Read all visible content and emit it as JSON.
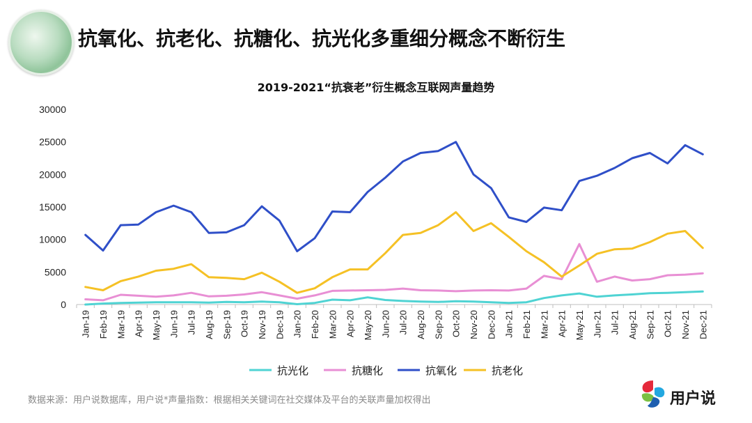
{
  "page": {
    "title": "抗氧化、抗老化、抗糖化、抗光化多重细分概念不断衍生",
    "source": "数据来源：用户说数据库，用户说*声量指数：根据相关关键词在社交媒体及平台的关联声量加权得出"
  },
  "brand": {
    "name": "用户说",
    "colors": [
      "#e5293b",
      "#23a8e0",
      "#7cc142",
      "#1e5fb0"
    ]
  },
  "chart_data": {
    "type": "line",
    "title": "2019-2021“抗衰老”衍生概念互联网声量趋势",
    "xlabel": "",
    "ylabel": "",
    "ylim": [
      0,
      30000
    ],
    "yticks": [
      0,
      5000,
      10000,
      15000,
      20000,
      25000,
      30000
    ],
    "grid": false,
    "legend": "bottom",
    "x": [
      "Jan-19",
      "Feb-19",
      "Mar-19",
      "Apr-19",
      "May-19",
      "Jun-19",
      "Jul-19",
      "Aug-19",
      "Sep-19",
      "Oct-19",
      "Nov-19",
      "Dec-19",
      "Jan-20",
      "Feb-20",
      "Mar-20",
      "Apr-20",
      "May-20",
      "Jun-20",
      "Jul-20",
      "Aug-20",
      "Sep-20",
      "Oct-20",
      "Nov-20",
      "Dec-20",
      "Jan-21",
      "Feb-21",
      "Mar-21",
      "Apr-21",
      "May-21",
      "Jun-21",
      "Jul-21",
      "Aug-21",
      "Sep-21",
      "Oct-21",
      "Nov-21",
      "Dec-21"
    ],
    "series": [
      {
        "name": "抗光化",
        "color": "#4fd3d3",
        "values": [
          0,
          150,
          250,
          300,
          350,
          350,
          350,
          300,
          400,
          350,
          450,
          350,
          50,
          250,
          750,
          650,
          1100,
          700,
          550,
          450,
          400,
          500,
          450,
          350,
          250,
          350,
          1000,
          1400,
          1700,
          1200,
          1400,
          1550,
          1750,
          1800,
          1900,
          2000
        ]
      },
      {
        "name": "抗糖化",
        "color": "#e88fd4",
        "values": [
          800,
          650,
          1500,
          1350,
          1200,
          1400,
          1800,
          1250,
          1350,
          1550,
          1900,
          1400,
          900,
          1400,
          2100,
          2150,
          2200,
          2250,
          2450,
          2200,
          2150,
          2050,
          2150,
          2200,
          2150,
          2450,
          4400,
          3900,
          9300,
          3500,
          4300,
          3700,
          3900,
          4500,
          4600,
          4800
        ]
      },
      {
        "name": "抗氧化",
        "color": "#2f4fc8",
        "values": [
          10700,
          8300,
          12200,
          12300,
          14200,
          15200,
          14200,
          11000,
          11100,
          12200,
          15100,
          12900,
          8200,
          10200,
          14300,
          14200,
          17300,
          19500,
          22000,
          23300,
          23600,
          25000,
          20000,
          17900,
          13400,
          12700,
          14900,
          14500,
          19000,
          19800,
          21000,
          22500,
          23300,
          21700,
          24500,
          23100
        ]
      },
      {
        "name": "抗老化",
        "color": "#f5c125",
        "values": [
          2700,
          2200,
          3600,
          4300,
          5200,
          5500,
          6200,
          4200,
          4100,
          3900,
          4900,
          3500,
          1800,
          2500,
          4200,
          5400,
          5400,
          7900,
          10700,
          11000,
          12200,
          14200,
          11300,
          12500,
          10400,
          8200,
          6500,
          4300,
          6000,
          7800,
          8500,
          8600,
          9600,
          10900,
          11300,
          8700
        ]
      }
    ]
  }
}
